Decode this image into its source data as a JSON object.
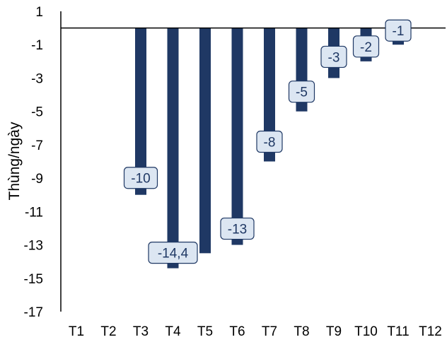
{
  "chart_data": {
    "type": "bar",
    "categories": [
      "T1",
      "T2",
      "T3",
      "T4",
      "T5",
      "T6",
      "T7",
      "T8",
      "T9",
      "T10",
      "T11",
      "T12"
    ],
    "series": [
      {
        "values": [
          null,
          null,
          -10,
          -14.4,
          -13.5,
          -13,
          -8,
          -5,
          -3,
          -2,
          -1,
          null
        ],
        "data_labels": [
          null,
          null,
          "-10",
          "-14,4",
          null,
          "-13",
          "-8",
          "-5",
          "-3",
          "-2",
          "-1",
          null
        ]
      }
    ],
    "ylabel": "Thùng/ngày",
    "xlabel": "",
    "ylim": [
      -17,
      1
    ],
    "yticks": [
      1,
      -1,
      -3,
      -5,
      -7,
      -9,
      -11,
      -13,
      -15,
      -17
    ],
    "grid": false,
    "colors": {
      "bar": "#1f3864",
      "label_fill": "#dce6f2",
      "label_border": "#1f3864"
    }
  }
}
